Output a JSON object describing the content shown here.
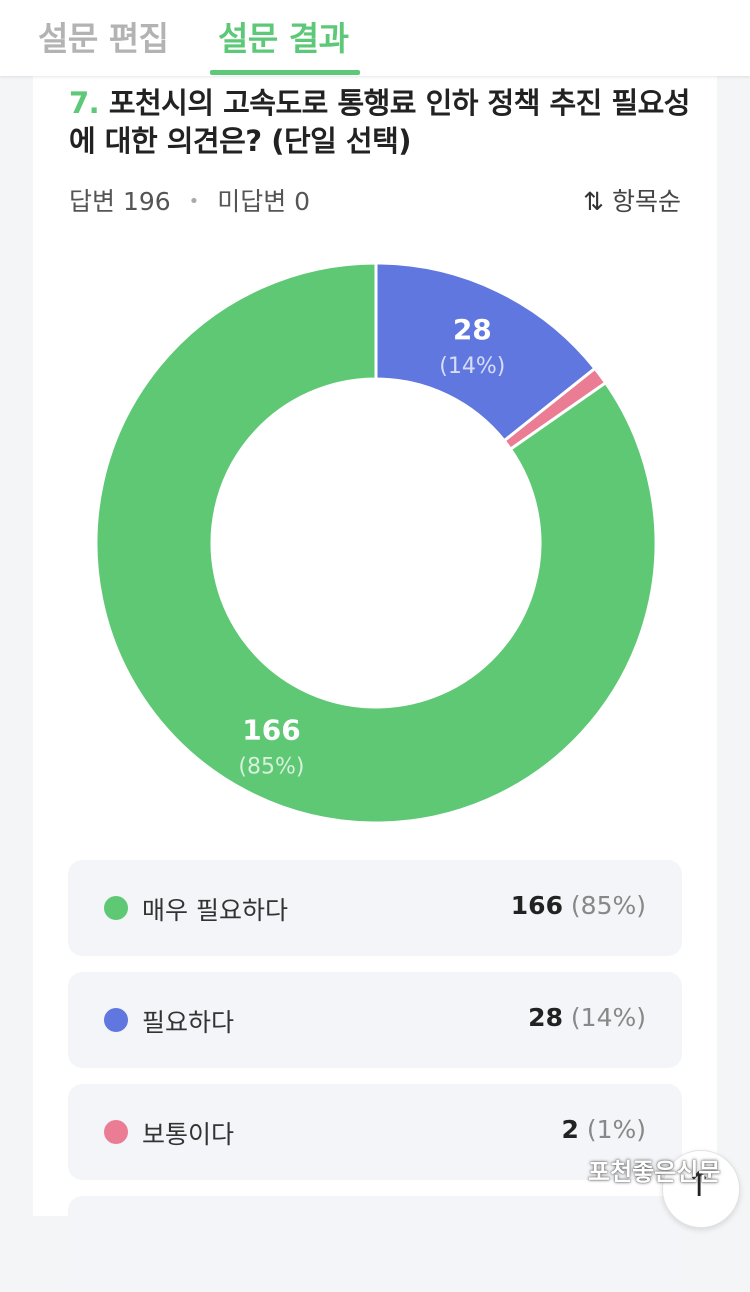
{
  "tabs": [
    {
      "label": "설문 편집"
    },
    {
      "label": "설문 결과"
    }
  ],
  "question": {
    "number": "7.",
    "text": "포천시의 고속도로 통행료 인하 정책 추진 필요성에 대한 의견은? (단일 선택)"
  },
  "meta": {
    "answered": "답변 196",
    "separator": "•",
    "unanswered": "미답변 0",
    "sort_label": "항목순"
  },
  "chart_data": {
    "type": "pie",
    "categories": [
      "매우 필요하다",
      "필요하다",
      "보통이다"
    ],
    "values": [
      166,
      28,
      2
    ],
    "colors": [
      "#5ec874",
      "#6177e0",
      "#ea7c93"
    ],
    "labels": [
      {
        "value": "166",
        "pct": "(85%)"
      },
      {
        "value": "28",
        "pct": "(14%)"
      }
    ]
  },
  "legend": [
    {
      "label": "매우 필요하다",
      "count": "166",
      "pct": "(85%)",
      "color": "#5ec874"
    },
    {
      "label": "필요하다",
      "count": "28",
      "pct": "(14%)",
      "color": "#6177e0"
    },
    {
      "label": "보통이다",
      "count": "2",
      "pct": "(1%)",
      "color": "#ea7c93"
    }
  ],
  "watermark": "포천좋은신문",
  "icons": {
    "sort": "sort-arrows-icon",
    "scroll_top": "arrow-up-icon"
  }
}
